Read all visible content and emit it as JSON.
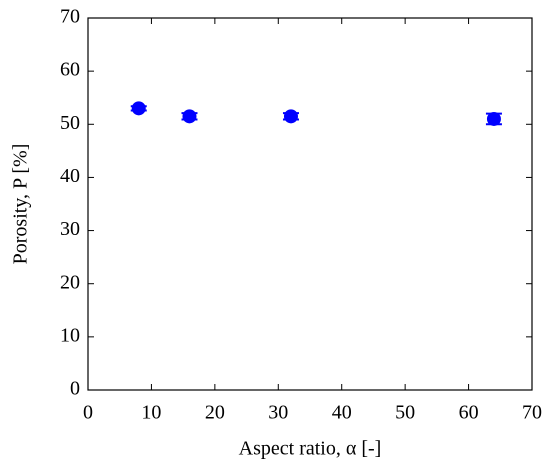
{
  "chart_data": {
    "type": "scatter",
    "xlabel": "Aspect ratio, α [-]",
    "ylabel": "Porosity, P [%]",
    "x": [
      8,
      16,
      32,
      64
    ],
    "values": [
      53,
      51.5,
      51.5,
      51
    ],
    "errors": [
      0.4,
      0.6,
      0.6,
      1.0
    ],
    "color": "#0000ff",
    "xlim": [
      0,
      70
    ],
    "xticks": [
      0,
      10,
      20,
      30,
      40,
      50,
      60,
      70
    ],
    "ylim": [
      0,
      70
    ],
    "yticks": [
      0,
      10,
      20,
      30,
      40,
      50,
      60,
      70
    ]
  }
}
